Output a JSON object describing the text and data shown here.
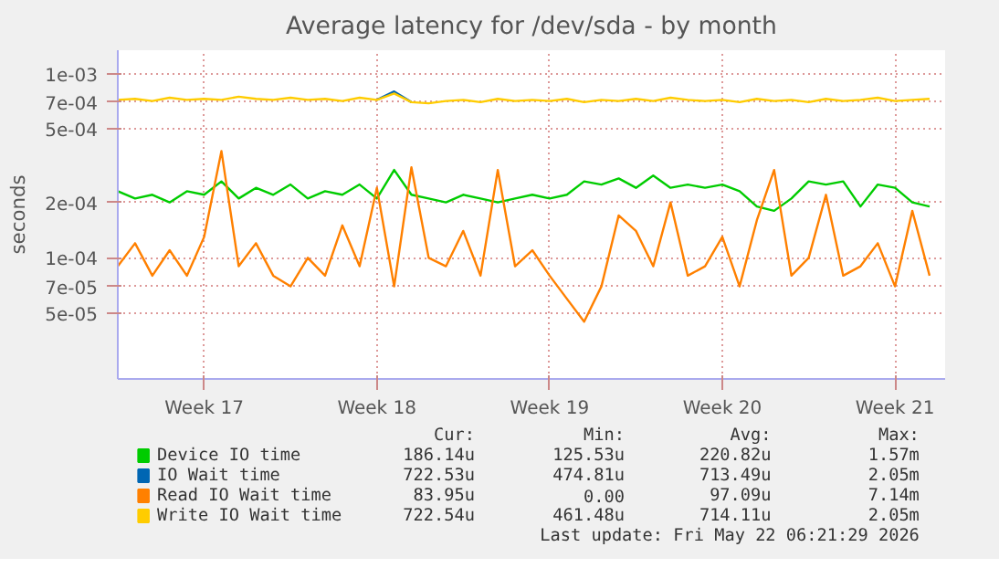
{
  "chart_data": {
    "type": "line",
    "title": "Average latency for /dev/sda - by month",
    "ylabel": "seconds",
    "log": "y",
    "grid": true,
    "legend": "bottom",
    "categories": [
      null,
      null,
      null,
      null,
      null,
      "Week 17",
      null,
      null,
      null,
      null,
      null,
      null,
      null,
      null,
      null,
      "Week 18",
      null,
      null,
      null,
      null,
      null,
      null,
      null,
      null,
      null,
      "Week 19",
      null,
      null,
      null,
      null,
      null,
      null,
      null,
      null,
      null,
      "Week 20",
      null,
      null,
      null,
      null,
      null,
      null,
      null,
      null,
      null,
      "Week 21",
      null,
      null
    ],
    "ylim": [
      2.2e-05,
      0.00134
    ],
    "yticks": [
      {
        "value": 5e-05,
        "label": "5e-05"
      },
      {
        "value": 7e-05,
        "label": "7e-05"
      },
      {
        "value": 0.0001,
        "label": "1e-04"
      },
      {
        "value": 0.0002,
        "label": "2e-04"
      },
      {
        "value": 0.0005,
        "label": "5e-04"
      },
      {
        "value": 0.0007,
        "label": "7e-04"
      },
      {
        "value": 0.001,
        "label": "1e-03"
      }
    ],
    "series": [
      {
        "name": "Device IO time",
        "color": "#00cc00",
        "values": [
          0.00023,
          0.00021,
          0.00022,
          0.0002,
          0.00023,
          0.00022,
          0.00026,
          0.00021,
          0.00024,
          0.00022,
          0.00025,
          0.00021,
          0.00023,
          0.00022,
          0.00025,
          0.00021,
          0.0003,
          0.00022,
          0.00021,
          0.0002,
          0.00022,
          0.00021,
          0.0002,
          0.00021,
          0.00022,
          0.00021,
          0.00022,
          0.00026,
          0.00025,
          0.00027,
          0.00024,
          0.00028,
          0.00024,
          0.00025,
          0.00024,
          0.00025,
          0.00023,
          0.00019,
          0.00018,
          0.00021,
          0.00026,
          0.00025,
          0.00026,
          0.00019,
          0.00025,
          0.00024,
          0.0002,
          0.00019
        ]
      },
      {
        "name": "IO Wait time",
        "color": "#0066b3",
        "values": [
          null,
          null,
          null,
          null,
          null,
          null,
          null,
          null,
          null,
          null,
          null,
          null,
          null,
          null,
          null,
          0.00072,
          0.0008,
          0.0007,
          null,
          null,
          null,
          null,
          null,
          null,
          null,
          null,
          null,
          null,
          null,
          null,
          null,
          null,
          null,
          null,
          null,
          null,
          null,
          null,
          null,
          null,
          null,
          null,
          null,
          null,
          null,
          null,
          null,
          null
        ]
      },
      {
        "name": "Read IO Wait time",
        "color": "#ff8000",
        "values": [
          9e-05,
          0.00012,
          8e-05,
          0.00011,
          8e-05,
          0.00013,
          0.00038,
          9e-05,
          0.00012,
          8e-05,
          7e-05,
          0.0001,
          8e-05,
          0.00015,
          9e-05,
          0.00024,
          7e-05,
          0.00031,
          0.0001,
          9e-05,
          0.00014,
          8e-05,
          0.0003,
          9e-05,
          0.00011,
          8e-05,
          6e-05,
          4.5e-05,
          7e-05,
          0.00017,
          0.00014,
          9e-05,
          0.0002,
          8e-05,
          9e-05,
          0.00013,
          7e-05,
          0.00016,
          0.0003,
          8e-05,
          0.0001,
          0.00022,
          8e-05,
          9e-05,
          0.00012,
          7e-05,
          0.00018,
          8e-05
        ]
      },
      {
        "name": "Write IO Wait time",
        "color": "#ffcc00",
        "values": [
          0.00072,
          0.00073,
          0.00071,
          0.00074,
          0.00072,
          0.00073,
          0.00072,
          0.00075,
          0.00073,
          0.00072,
          0.00074,
          0.00072,
          0.00073,
          0.00071,
          0.00074,
          0.00072,
          0.00078,
          0.0007,
          0.00069,
          0.00071,
          0.00072,
          0.0007,
          0.00073,
          0.00071,
          0.00072,
          0.00071,
          0.00073,
          0.0007,
          0.00072,
          0.00071,
          0.00073,
          0.00071,
          0.00074,
          0.00072,
          0.00071,
          0.00072,
          0.0007,
          0.00073,
          0.00071,
          0.00072,
          0.0007,
          0.00073,
          0.00071,
          0.00072,
          0.00074,
          0.00071,
          0.00072,
          0.00073
        ]
      }
    ],
    "annotations": [
      "Cur:",
      "Min:",
      "Avg:",
      "Max:",
      "186.14u",
      "125.53u",
      "220.82u",
      "1.57m",
      "722.53u",
      "474.81u",
      "713.49u",
      "2.05m",
      "83.95u",
      "0.00",
      "97.09u",
      "7.14m",
      "722.54u",
      "461.48u",
      "714.11u",
      "2.05m",
      "Last update: Fri May 22 06:21:29 2026"
    ]
  }
}
